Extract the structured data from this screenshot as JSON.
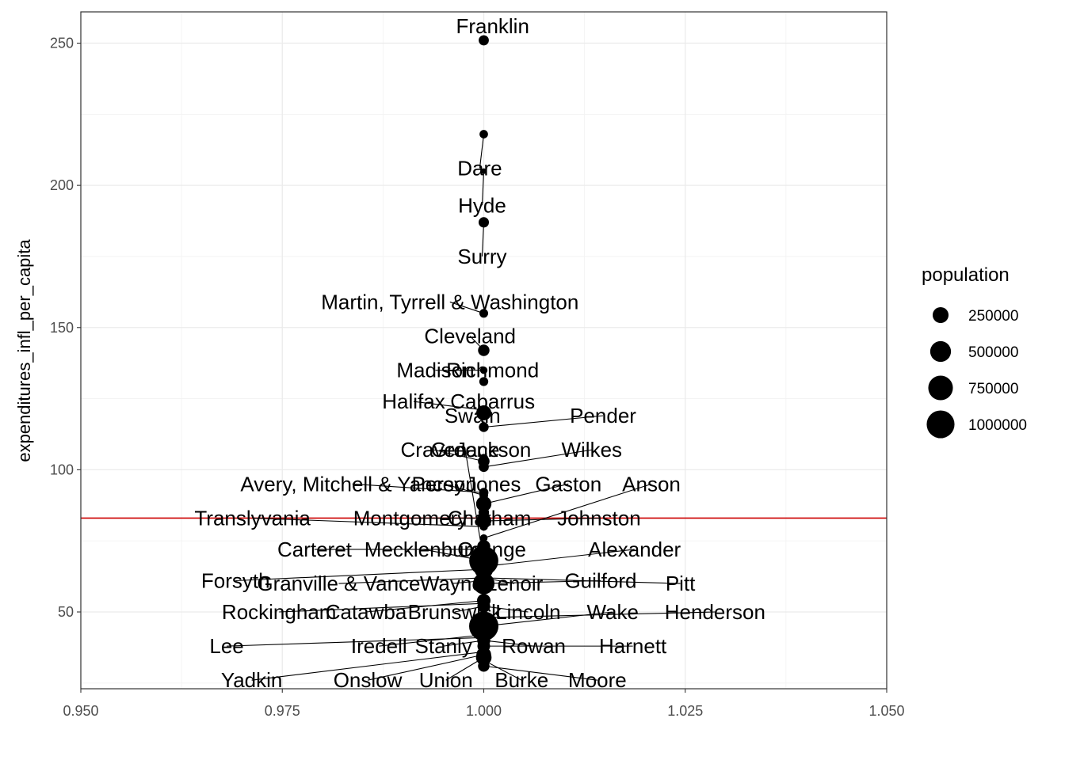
{
  "chart_data": {
    "type": "scatter",
    "title": "",
    "xlabel": "",
    "ylabel": "expenditures_infl_per_capita",
    "xlim": [
      0.95,
      1.05
    ],
    "ylim": [
      23,
      261
    ],
    "x_ticks": [
      0.95,
      0.975,
      1.0,
      1.025,
      1.05
    ],
    "x_tick_labels": [
      "0.950",
      "0.975",
      "1.000",
      "1.025",
      "1.050"
    ],
    "y_ticks": [
      50,
      100,
      150,
      200,
      250
    ],
    "y_tick_labels": [
      "50",
      "100",
      "150",
      "200",
      "250"
    ],
    "grid": true,
    "reference_line": {
      "y": 83,
      "color": "#cc0000"
    },
    "point_color": "#000000",
    "points": [
      {
        "name": "Franklin",
        "x": 1.0,
        "y": 251,
        "population": 68000,
        "label_x": 1.0011,
        "label_y": 256
      },
      {
        "name": "Dare",
        "x": 1.0,
        "y": 218,
        "population": 36000,
        "label_x": 0.9995,
        "label_y": 206
      },
      {
        "name": "Hyde",
        "x": 1.0,
        "y": 205,
        "population": 5000,
        "label_x": 0.9998,
        "label_y": 193
      },
      {
        "name": "Surry",
        "x": 1.0,
        "y": 187,
        "population": 72000,
        "label_x": 0.9998,
        "label_y": 175
      },
      {
        "name": "Martin, Tyrrell & Washington",
        "x": 1.0,
        "y": 155,
        "population": 40000,
        "label_x": 0.9958,
        "label_y": 159
      },
      {
        "name": "Cleveland",
        "x": 1.0,
        "y": 142,
        "population": 99000,
        "label_x": 0.9983,
        "label_y": 147
      },
      {
        "name": "Madison",
        "x": 1.0,
        "y": 135,
        "population": 21000,
        "label_x": 0.994,
        "label_y": 135
      },
      {
        "name": "Richmond",
        "x": 1.0,
        "y": 131,
        "population": 44000,
        "label_x": 1.0011,
        "label_y": 135
      },
      {
        "name": "Halifax",
        "x": 1.0,
        "y": 121,
        "population": 50000,
        "label_x": 0.9913,
        "label_y": 124
      },
      {
        "name": "Cabarrus",
        "x": 1.0,
        "y": 120,
        "population": 216000,
        "label_x": 1.0011,
        "label_y": 124
      },
      {
        "name": "Swain",
        "x": 1.0,
        "y": 121,
        "population": 14000,
        "label_x": 0.9986,
        "label_y": 119
      },
      {
        "name": "Pender",
        "x": 1.0,
        "y": 115,
        "population": 60000,
        "label_x": 1.0148,
        "label_y": 119
      },
      {
        "name": "Greene",
        "x": 1.0,
        "y": 68,
        "population": 21000,
        "label_x": 0.9977,
        "label_y": 107
      },
      {
        "name": "Craven",
        "x": 1.0,
        "y": 103,
        "population": 102000,
        "label_x": 0.9938,
        "label_y": 107
      },
      {
        "name": "Jackson",
        "x": 1.0,
        "y": 104,
        "population": 43000,
        "label_x": 1.0012,
        "label_y": 107
      },
      {
        "name": "Wilkes",
        "x": 1.0,
        "y": 101,
        "population": 66000,
        "label_x": 1.0134,
        "label_y": 107
      },
      {
        "name": "Avery, Mitchell & Yancey",
        "x": 1.0,
        "y": 92,
        "population": 50000,
        "label_x": 0.9837,
        "label_y": 95
      },
      {
        "name": "Person",
        "x": 1.0,
        "y": 91,
        "population": 39000,
        "label_x": 0.9951,
        "label_y": 95
      },
      {
        "name": "Jones",
        "x": 1.0,
        "y": 90,
        "population": 9000,
        "label_x": 1.0012,
        "label_y": 95
      },
      {
        "name": "Gaston",
        "x": 1.0,
        "y": 88,
        "population": 227000,
        "label_x": 1.0105,
        "label_y": 95
      },
      {
        "name": "Anson",
        "x": 1.0,
        "y": 76,
        "population": 23000,
        "label_x": 1.0208,
        "label_y": 95
      },
      {
        "name": "Translyvania",
        "x": 1.0,
        "y": 80,
        "population": 33000,
        "label_x": 0.9713,
        "label_y": 83
      },
      {
        "name": "Montgomery",
        "x": 1.0,
        "y": 83,
        "population": 26000,
        "label_x": 0.9909,
        "label_y": 83
      },
      {
        "name": "Chatham",
        "x": 1.0,
        "y": 85,
        "population": 76000,
        "label_x": 1.0007,
        "label_y": 83
      },
      {
        "name": "Johnston",
        "x": 1.0,
        "y": 82,
        "population": 215000,
        "label_x": 1.0143,
        "label_y": 83
      },
      {
        "name": "Carteret",
        "x": 1.0,
        "y": 72,
        "population": 69000,
        "label_x": 0.979,
        "label_y": 72
      },
      {
        "name": "Mecklenburg",
        "x": 1.0,
        "y": 68,
        "population": 1110000,
        "label_x": 0.9925,
        "label_y": 72
      },
      {
        "name": "Orange",
        "x": 1.0,
        "y": 73,
        "population": 148000,
        "label_x": 1.001,
        "label_y": 72
      },
      {
        "name": "Alexander",
        "x": 1.0,
        "y": 66,
        "population": 37000,
        "label_x": 1.0187,
        "label_y": 72
      },
      {
        "name": "Forsyth",
        "x": 1.0,
        "y": 65,
        "population": 382000,
        "label_x": 0.9692,
        "label_y": 61
      },
      {
        "name": "Granville & Vance",
        "x": 1.0,
        "y": 62,
        "population": 104000,
        "label_x": 0.982,
        "label_y": 60
      },
      {
        "name": "Wayne",
        "x": 1.0,
        "y": 61,
        "population": 117000,
        "label_x": 0.996,
        "label_y": 60
      },
      {
        "name": "Lenoir",
        "x": 1.0,
        "y": 62,
        "population": 55000,
        "label_x": 1.0038,
        "label_y": 60
      },
      {
        "name": "Guilford",
        "x": 1.0,
        "y": 60,
        "population": 537000,
        "label_x": 1.0145,
        "label_y": 61
      },
      {
        "name": "Pitt",
        "x": 1.0,
        "y": 62,
        "population": 180000,
        "label_x": 1.0244,
        "label_y": 60
      },
      {
        "name": "Rockingham",
        "x": 1.0,
        "y": 53,
        "population": 91000,
        "label_x": 0.9746,
        "label_y": 50
      },
      {
        "name": "Catawba",
        "x": 1.0,
        "y": 54,
        "population": 160000,
        "label_x": 0.9854,
        "label_y": 50
      },
      {
        "name": "Brunswick",
        "x": 1.0,
        "y": 52,
        "population": 136000,
        "label_x": 0.9964,
        "label_y": 50
      },
      {
        "name": "Lincoln",
        "x": 1.0,
        "y": 52,
        "population": 86000,
        "label_x": 1.0055,
        "label_y": 50
      },
      {
        "name": "Wake",
        "x": 1.0,
        "y": 45,
        "population": 1130000,
        "label_x": 1.016,
        "label_y": 50
      },
      {
        "name": "Henderson",
        "x": 1.0,
        "y": 48,
        "population": 116000,
        "label_x": 1.0287,
        "label_y": 50
      },
      {
        "name": "Lee",
        "x": 1.0,
        "y": 41,
        "population": 61000,
        "label_x": 0.9681,
        "label_y": 38
      },
      {
        "name": "Iredell",
        "x": 1.0,
        "y": 42,
        "population": 186000,
        "label_x": 0.987,
        "label_y": 38
      },
      {
        "name": "Stanly",
        "x": 1.0,
        "y": 40,
        "population": 62000,
        "label_x": 0.995,
        "label_y": 38
      },
      {
        "name": "Rowan",
        "x": 1.0,
        "y": 40,
        "population": 146000,
        "label_x": 1.0062,
        "label_y": 38
      },
      {
        "name": "Harnett",
        "x": 1.0,
        "y": 38,
        "population": 133000,
        "label_x": 1.0185,
        "label_y": 38
      },
      {
        "name": "Yadkin",
        "x": 1.0,
        "y": 36,
        "population": 37000,
        "label_x": 0.9712,
        "label_y": 26
      },
      {
        "name": "Onslow",
        "x": 1.0,
        "y": 35,
        "population": 204000,
        "label_x": 0.9856,
        "label_y": 26
      },
      {
        "name": "Union",
        "x": 1.0,
        "y": 34,
        "population": 238000,
        "label_x": 0.9953,
        "label_y": 26
      },
      {
        "name": "Burke",
        "x": 1.0,
        "y": 33,
        "population": 90000,
        "label_x": 1.0047,
        "label_y": 26
      },
      {
        "name": "Moore",
        "x": 1.0,
        "y": 31,
        "population": 100000,
        "label_x": 1.0141,
        "label_y": 26
      }
    ],
    "legend": {
      "title": "population",
      "placement": "right",
      "entries": [
        {
          "label": "250000",
          "value": 250000
        },
        {
          "label": "500000",
          "value": 500000
        },
        {
          "label": "750000",
          "value": 750000
        },
        {
          "label": "1000000",
          "value": 1000000
        }
      ]
    }
  }
}
